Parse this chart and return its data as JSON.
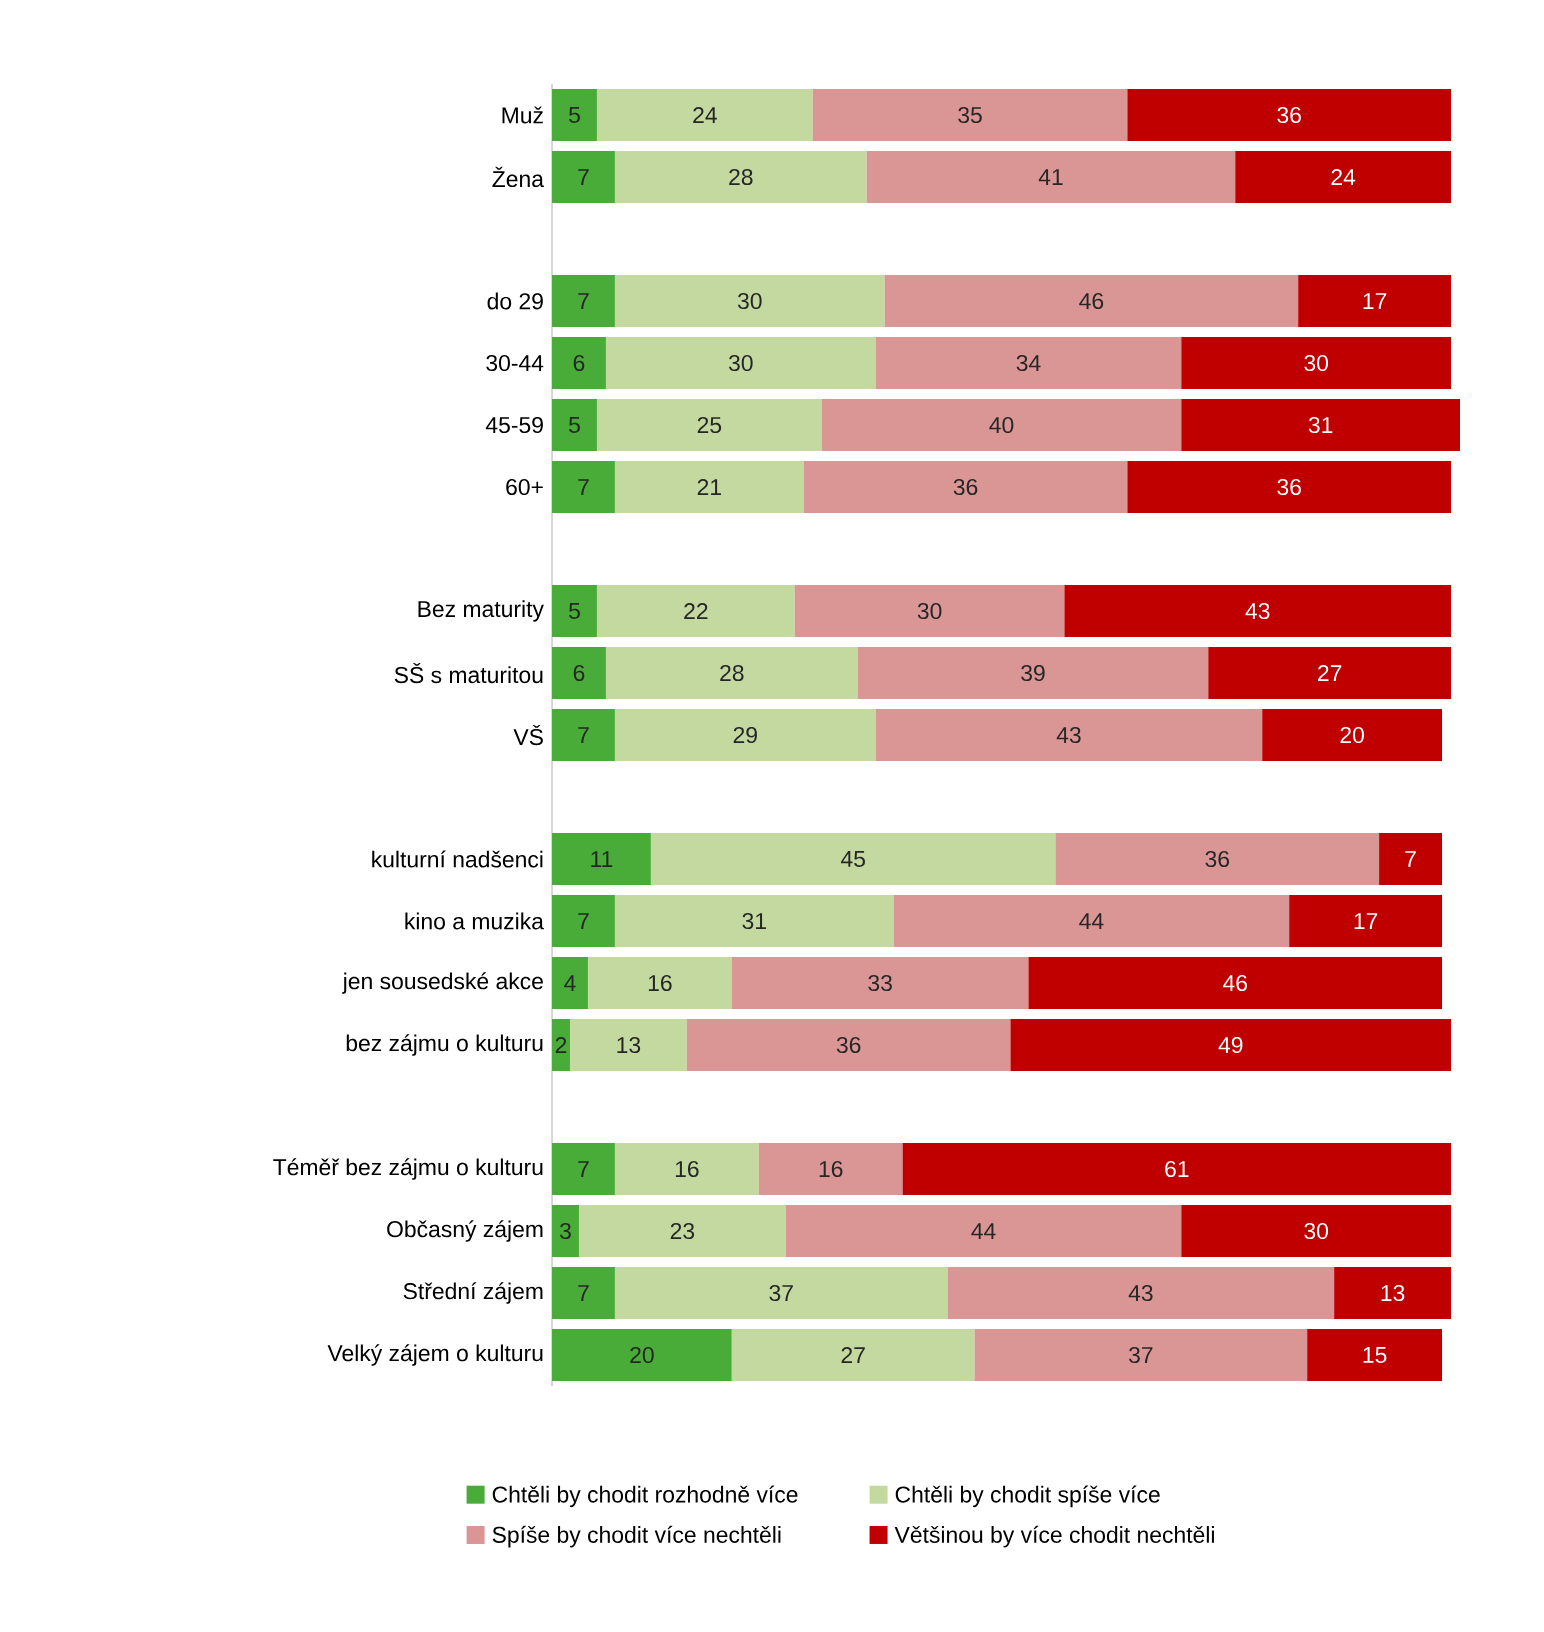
{
  "chart_data": {
    "type": "bar",
    "orientation": "horizontal",
    "stacked": true,
    "data_labels": true,
    "legend": "bottom",
    "categories": [
      "Muž",
      "Žena",
      null,
      "do 29",
      "30-44",
      "45-59",
      "60+",
      null,
      "Bez maturity",
      "SŠ s maturitou",
      "VŠ",
      null,
      "kulturní nadšenci",
      "kino a muzika",
      "jen sousedské akce",
      "bez zájmu o kulturu",
      null,
      "Téměř bez zájmu o kulturu",
      "Občasný zájem",
      "Střední zájem",
      "Velký zájem o kulturu"
    ],
    "series": [
      {
        "name": "Chtěli by chodit rozhodně více",
        "color": "#4aac38",
        "values": [
          5,
          7,
          null,
          7,
          6,
          5,
          7,
          null,
          5,
          6,
          7,
          null,
          11,
          7,
          4,
          2,
          null,
          7,
          3,
          7,
          20
        ]
      },
      {
        "name": "Chtěli by chodit spíše více",
        "color": "#c3d9a0",
        "values": [
          24,
          28,
          null,
          30,
          30,
          25,
          21,
          null,
          22,
          28,
          29,
          null,
          45,
          31,
          16,
          13,
          null,
          16,
          23,
          37,
          27
        ]
      },
      {
        "name": "Spíše by chodit více nechtěli",
        "color": "#d99694",
        "values": [
          35,
          41,
          null,
          46,
          34,
          40,
          36,
          null,
          30,
          39,
          43,
          null,
          36,
          44,
          33,
          36,
          null,
          16,
          44,
          43,
          37
        ]
      },
      {
        "name": "Většinou by více chodit nechtěli",
        "color": "#c00000",
        "values": [
          36,
          24,
          null,
          17,
          30,
          31,
          36,
          null,
          43,
          27,
          20,
          null,
          7,
          17,
          46,
          49,
          null,
          61,
          30,
          13,
          15
        ]
      }
    ]
  }
}
